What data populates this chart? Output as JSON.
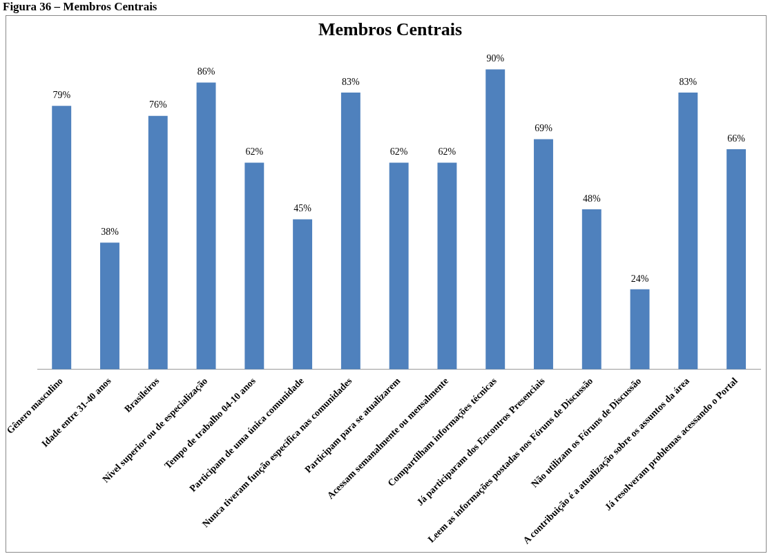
{
  "chart_data": {
    "type": "bar",
    "title": "Membros Centrais",
    "annotations": [
      "Figura 36 – Membros Centrais"
    ],
    "categories": [
      "Gênero masculino",
      "Idade entre 31-40 anos",
      "Brasileiros",
      "Nível superior ou de especialização",
      "Tempo de trabalho 04-10 anos",
      "Participam de uma única comunidade",
      "Nunca tiveram função específica nas comunidades",
      "Participam para se atualizarem",
      "Acessam semanalmente ou mensalmente",
      "Compartilham informações técnicas",
      "Já participaram dos Encontros Presenciais",
      "Leem as informações postadas nos Fóruns de Discussão",
      "Não utilizam os Fóruns de Discussão",
      "A contribuição é a atualização sobre os assuntos da área",
      "Já resolveram problemas acessando o Portal"
    ],
    "values": [
      79,
      38,
      76,
      86,
      62,
      45,
      83,
      62,
      62,
      90,
      69,
      48,
      24,
      83,
      66
    ],
    "value_labels": [
      "79%",
      "38%",
      "76%",
      "86%",
      "62%",
      "45%",
      "83%",
      "62%",
      "62%",
      "90%",
      "69%",
      "48%",
      "24%",
      "83%",
      "66%"
    ],
    "color": "#4f81bd",
    "grid": false,
    "legend": false
  }
}
